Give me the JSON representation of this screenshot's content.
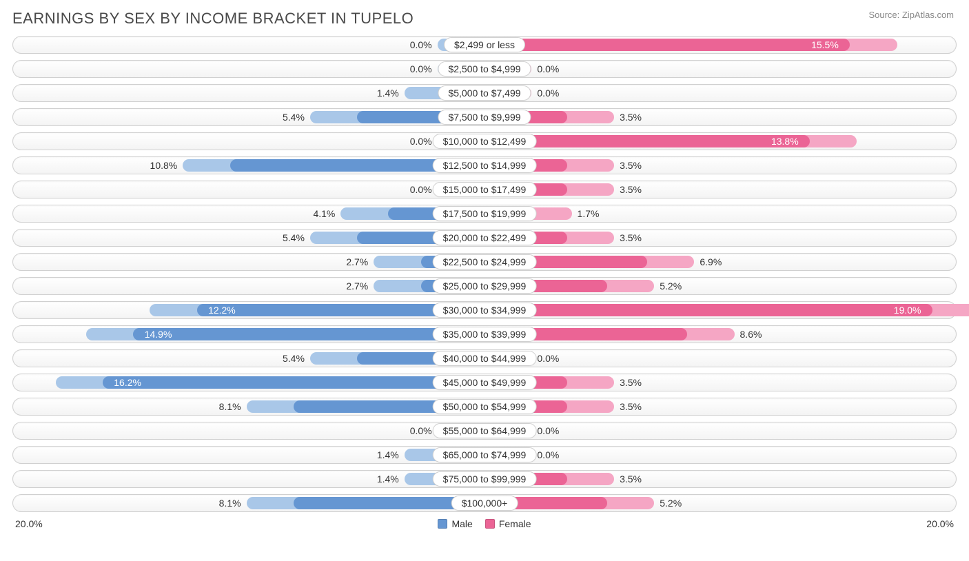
{
  "title": "EARNINGS BY SEX BY INCOME BRACKET IN TUPELO",
  "source": "Source: ZipAtlas.com",
  "chart": {
    "type": "diverging-bar",
    "axis_max_percent": 20.0,
    "axis_label_left": "20.0%",
    "axis_label_right": "20.0%",
    "base_bar_percent": 2.0,
    "colors": {
      "male_outer": "#a9c7e8",
      "male_inner": "#6596d2",
      "female_outer": "#f5a6c4",
      "female_inner": "#eb6495",
      "track_border": "#d0d0d0",
      "track_bg_top": "#ffffff",
      "track_bg_bottom": "#f4f4f4",
      "text": "#333333",
      "text_inside": "#ffffff"
    },
    "fontsize": {
      "title": 22,
      "labels": 14,
      "source": 13
    },
    "legend": [
      {
        "label": "Male",
        "color": "#6596d2"
      },
      {
        "label": "Female",
        "color": "#eb6495"
      }
    ],
    "rows": [
      {
        "category": "$2,499 or less",
        "male": 0.0,
        "female": 15.5
      },
      {
        "category": "$2,500 to $4,999",
        "male": 0.0,
        "female": 0.0
      },
      {
        "category": "$5,000 to $7,499",
        "male": 1.4,
        "female": 0.0
      },
      {
        "category": "$7,500 to $9,999",
        "male": 5.4,
        "female": 3.5
      },
      {
        "category": "$10,000 to $12,499",
        "male": 0.0,
        "female": 13.8
      },
      {
        "category": "$12,500 to $14,999",
        "male": 10.8,
        "female": 3.5
      },
      {
        "category": "$15,000 to $17,499",
        "male": 0.0,
        "female": 3.5
      },
      {
        "category": "$17,500 to $19,999",
        "male": 4.1,
        "female": 1.7
      },
      {
        "category": "$20,000 to $22,499",
        "male": 5.4,
        "female": 3.5
      },
      {
        "category": "$22,500 to $24,999",
        "male": 2.7,
        "female": 6.9
      },
      {
        "category": "$25,000 to $29,999",
        "male": 2.7,
        "female": 5.2
      },
      {
        "category": "$30,000 to $34,999",
        "male": 12.2,
        "female": 19.0
      },
      {
        "category": "$35,000 to $39,999",
        "male": 14.9,
        "female": 8.6
      },
      {
        "category": "$40,000 to $44,999",
        "male": 5.4,
        "female": 0.0
      },
      {
        "category": "$45,000 to $49,999",
        "male": 16.2,
        "female": 3.5
      },
      {
        "category": "$50,000 to $54,999",
        "male": 8.1,
        "female": 3.5
      },
      {
        "category": "$55,000 to $64,999",
        "male": 0.0,
        "female": 0.0
      },
      {
        "category": "$65,000 to $74,999",
        "male": 1.4,
        "female": 0.0
      },
      {
        "category": "$75,000 to $99,999",
        "male": 1.4,
        "female": 3.5
      },
      {
        "category": "$100,000+",
        "male": 8.1,
        "female": 5.2
      }
    ]
  }
}
